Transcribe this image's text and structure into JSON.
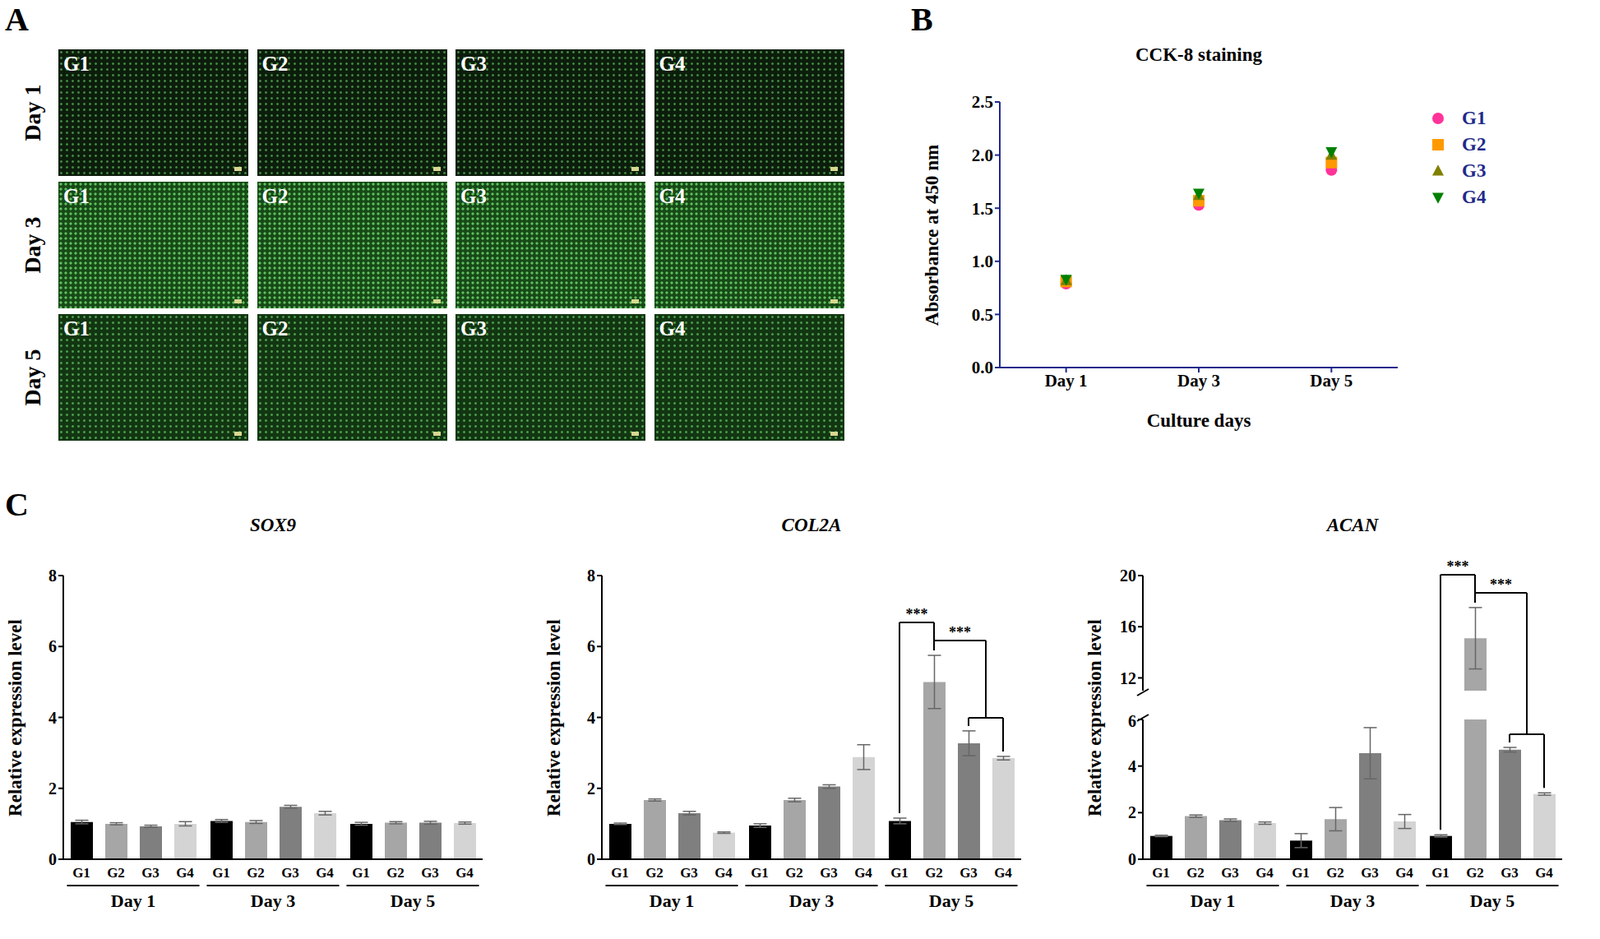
{
  "panel_labels": [
    "A",
    "B",
    "C"
  ],
  "micrographs": {
    "rows": [
      "Day 1",
      "Day 3",
      "Day 5"
    ],
    "columns": [
      "G1",
      "G2",
      "G3",
      "G4"
    ]
  },
  "chart_data": [
    {
      "type": "scatter",
      "title": "CCK-8 staining",
      "x_label": "Culture days",
      "y_label": "Absorbance at 450 nm",
      "categories": [
        "Day 1",
        "Day 3",
        "Day 5"
      ],
      "ylim": [
        0,
        2.5
      ],
      "yticks": [
        {
          "value": 0,
          "label": "0.0"
        },
        0.5,
        {
          "value": 1,
          "label": "1.0"
        },
        1.5,
        {
          "value": 2,
          "label": "2.0"
        },
        2.5
      ],
      "legend": "right",
      "series": [
        {
          "name": "G1",
          "color": "#ff3399",
          "marker": "circle",
          "values": [
            0.79,
            1.53,
            1.86
          ]
        },
        {
          "name": "G2",
          "color": "#ff9900",
          "marker": "square",
          "values": [
            0.81,
            1.57,
            1.93
          ]
        },
        {
          "name": "G3",
          "color": "#808000",
          "marker": "triangle",
          "values": [
            0.82,
            1.62,
            2.0
          ]
        },
        {
          "name": "G4",
          "color": "#008000",
          "marker": "triangle_down",
          "values": [
            0.83,
            1.64,
            2.03
          ]
        }
      ]
    },
    {
      "type": "bar",
      "title": "SOX9",
      "y_label": "Relative expression level",
      "categories": [
        "Day 1",
        "Day 3",
        "Day 5"
      ],
      "ylim": [
        0,
        8
      ],
      "yticks": [
        0,
        2,
        4,
        6,
        8
      ],
      "series": [
        {
          "name": "G1",
          "color": "#000000",
          "values": [
            1.05,
            1.08,
            1.0
          ],
          "errors": [
            0.05,
            0.04,
            0.04
          ]
        },
        {
          "name": "G2",
          "color": "#a6a6a6",
          "values": [
            1.0,
            1.05,
            1.03
          ],
          "errors": [
            0.03,
            0.04,
            0.03
          ]
        },
        {
          "name": "G3",
          "color": "#7f7f7f",
          "values": [
            0.93,
            1.48,
            1.03
          ],
          "errors": [
            0.03,
            0.04,
            0.04
          ]
        },
        {
          "name": "G4",
          "color": "#d4d4d4",
          "values": [
            1.0,
            1.3,
            1.02
          ],
          "errors": [
            0.06,
            0.05,
            0.03
          ]
        }
      ]
    },
    {
      "type": "bar",
      "title": "COL2A",
      "y_label": "Relative expression level",
      "categories": [
        "Day 1",
        "Day 3",
        "Day 5"
      ],
      "ylim": [
        0,
        8
      ],
      "yticks": [
        0,
        2,
        4,
        6,
        8
      ],
      "series": [
        {
          "name": "G1",
          "color": "#000000",
          "values": [
            1.0,
            0.95,
            1.08
          ],
          "errors": [
            0.02,
            0.05,
            0.08
          ]
        },
        {
          "name": "G2",
          "color": "#a6a6a6",
          "values": [
            1.67,
            1.67,
            5.0
          ],
          "errors": [
            0.03,
            0.05,
            0.75
          ]
        },
        {
          "name": "G3",
          "color": "#7f7f7f",
          "values": [
            1.3,
            2.05,
            3.27
          ],
          "errors": [
            0.05,
            0.05,
            0.35
          ]
        },
        {
          "name": "G4",
          "color": "#d4d4d4",
          "values": [
            0.75,
            2.88,
            2.85
          ],
          "errors": [
            0.02,
            0.35,
            0.05
          ]
        }
      ],
      "annotations": [
        {
          "category": "Day 5",
          "from": "G1",
          "to": [
            "G2"
          ],
          "label": "***"
        },
        {
          "category": "Day 5",
          "from": "G2",
          "to": [
            "G3",
            "G4"
          ],
          "label": "***"
        }
      ]
    },
    {
      "type": "bar",
      "title": "ACAN",
      "y_label": "Relative expression level",
      "categories": [
        "Day 1",
        "Day 3",
        "Day 5"
      ],
      "ylim": [
        0,
        20
      ],
      "y_break": [
        6,
        11
      ],
      "yticks": [
        0,
        2,
        4,
        6,
        12,
        16,
        20
      ],
      "series": [
        {
          "name": "G1",
          "color": "#000000",
          "values": [
            1.0,
            0.8,
            1.0
          ],
          "errors": [
            0.03,
            0.3,
            0.05
          ]
        },
        {
          "name": "G2",
          "color": "#a6a6a6",
          "values": [
            1.85,
            1.72,
            15.1
          ],
          "errors": [
            0.05,
            0.5,
            2.4
          ]
        },
        {
          "name": "G3",
          "color": "#7f7f7f",
          "values": [
            1.68,
            4.55,
            4.7
          ],
          "errors": [
            0.05,
            1.1,
            0.1
          ]
        },
        {
          "name": "G4",
          "color": "#d4d4d4",
          "values": [
            1.55,
            1.62,
            2.8
          ],
          "errors": [
            0.05,
            0.3,
            0.05
          ]
        }
      ],
      "annotations": [
        {
          "category": "Day 5",
          "from": "G1",
          "to": [
            "G2"
          ],
          "label": "***"
        },
        {
          "category": "Day 5",
          "from": "G2",
          "to": [
            "G3",
            "G4"
          ],
          "label": "***"
        }
      ]
    }
  ]
}
